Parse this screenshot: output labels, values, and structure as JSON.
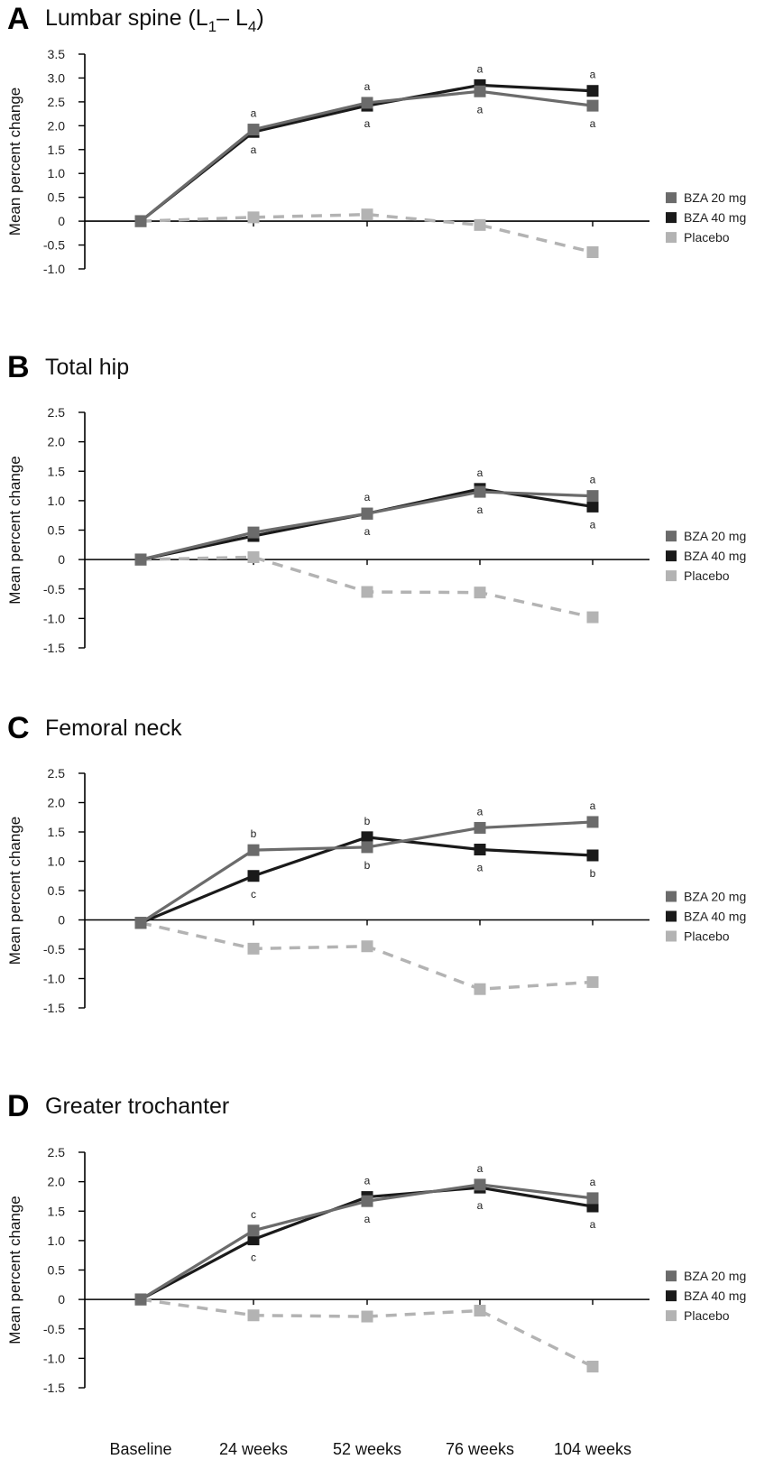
{
  "colors": {
    "bza20": "#6b6b6b",
    "bza40": "#1a1a1a",
    "placebo": "#b3b3b3",
    "axis": "#000000"
  },
  "legend": [
    "BZA 20 mg",
    "BZA 40 mg",
    "Placebo"
  ],
  "ylabel": "Mean percent change",
  "categories": [
    "Baseline",
    "24 weeks",
    "52 weeks",
    "76 weeks",
    "104 weeks"
  ],
  "chart_data": [
    {
      "type": "line",
      "panel": "A",
      "title": "Lumbar spine (L1– L4)",
      "title_main": "Lumbar spine (L",
      "title_sub1": "1",
      "title_mid": "– L",
      "title_sub2": "4",
      "title_end": ")",
      "categories": [
        "Baseline",
        "24 weeks",
        "52 weeks",
        "76 weeks",
        "104 weeks"
      ],
      "ylim": [
        -1.0,
        3.5
      ],
      "yticks": [
        -1.0,
        -0.5,
        0,
        0.5,
        1.0,
        1.5,
        2.0,
        2.5,
        3.0,
        3.5
      ],
      "ytick_labels": [
        "-1.0",
        "-0.5",
        "0",
        "0.5",
        "1.0",
        "1.5",
        "2.0",
        "2.5",
        "3.0",
        "3.5"
      ],
      "series": [
        {
          "name": "BZA 20 mg",
          "values": [
            0,
            1.92,
            2.48,
            2.72,
            2.42
          ],
          "sig_above": [
            "",
            "a",
            "a",
            "",
            ""
          ],
          "sig_below": [
            "",
            "",
            "",
            "a",
            "a"
          ]
        },
        {
          "name": "BZA 40 mg",
          "values": [
            0,
            1.87,
            2.42,
            2.85,
            2.73
          ],
          "sig_above": [
            "",
            "",
            "",
            "a",
            "a"
          ],
          "sig_below": [
            "",
            "a",
            "a",
            "",
            ""
          ]
        },
        {
          "name": "Placebo",
          "values": [
            0,
            0.08,
            0.14,
            -0.08,
            -0.65
          ]
        }
      ]
    },
    {
      "type": "line",
      "panel": "B",
      "title": "Total hip",
      "categories": [
        "Baseline",
        "24 weeks",
        "52 weeks",
        "76 weeks",
        "104 weeks"
      ],
      "ylim": [
        -1.5,
        2.5
      ],
      "yticks": [
        -1.5,
        -1.0,
        -0.5,
        0,
        0.5,
        1.0,
        1.5,
        2.0,
        2.5
      ],
      "ytick_labels": [
        "-1.5",
        "-1.0",
        "-0.5",
        "0",
        "0.5",
        "1.0",
        "1.5",
        "2.0",
        "2.5"
      ],
      "series": [
        {
          "name": "BZA 20 mg",
          "values": [
            0,
            0.46,
            0.78,
            1.15,
            1.08
          ],
          "sig_above": [
            "",
            "",
            "a",
            "",
            "a"
          ],
          "sig_below": [
            "",
            "",
            "",
            "a",
            ""
          ]
        },
        {
          "name": "BZA 40 mg",
          "values": [
            0,
            0.4,
            0.78,
            1.2,
            0.9
          ],
          "sig_above": [
            "",
            "",
            "",
            "a",
            ""
          ],
          "sig_below": [
            "",
            "",
            "a",
            "",
            "a"
          ]
        },
        {
          "name": "Placebo",
          "values": [
            0,
            0.04,
            -0.55,
            -0.56,
            -0.98
          ]
        }
      ]
    },
    {
      "type": "line",
      "panel": "C",
      "title": "Femoral neck",
      "categories": [
        "Baseline",
        "24 weeks",
        "52 weeks",
        "76 weeks",
        "104 weeks"
      ],
      "ylim": [
        -1.5,
        2.5
      ],
      "yticks": [
        -1.5,
        -1.0,
        -0.5,
        0,
        0.5,
        1.0,
        1.5,
        2.0,
        2.5
      ],
      "ytick_labels": [
        "-1.5",
        "-1.0",
        "-0.5",
        "0",
        "0.5",
        "1.0",
        "1.5",
        "2.0",
        "2.5"
      ],
      "series": [
        {
          "name": "BZA 20 mg",
          "values": [
            -0.05,
            1.19,
            1.24,
            1.57,
            1.67
          ],
          "sig_above": [
            "",
            "b",
            "",
            "a",
            "a"
          ],
          "sig_below": [
            "",
            "",
            "b",
            "",
            ""
          ]
        },
        {
          "name": "BZA 40 mg",
          "values": [
            -0.05,
            0.75,
            1.41,
            1.2,
            1.1
          ],
          "sig_above": [
            "",
            "",
            "b",
            "",
            ""
          ],
          "sig_below": [
            "",
            "c",
            "",
            "a",
            "b"
          ]
        },
        {
          "name": "Placebo",
          "values": [
            -0.05,
            -0.49,
            -0.45,
            -1.18,
            -1.06
          ]
        }
      ]
    },
    {
      "type": "line",
      "panel": "D",
      "title": "Greater trochanter",
      "xlabels_visible": true,
      "categories": [
        "Baseline",
        "24 weeks",
        "52 weeks",
        "76 weeks",
        "104 weeks"
      ],
      "ylim": [
        -1.5,
        2.5
      ],
      "yticks": [
        -1.5,
        -1.0,
        -0.5,
        0,
        0.5,
        1.0,
        1.5,
        2.0,
        2.5
      ],
      "ytick_labels": [
        "-1.5",
        "-1.0",
        "-0.5",
        "0",
        "0.5",
        "1.0",
        "1.5",
        "2.0",
        "2.5"
      ],
      "series": [
        {
          "name": "BZA 20 mg",
          "values": [
            0,
            1.17,
            1.67,
            1.95,
            1.72
          ],
          "sig_above": [
            "",
            "c",
            "",
            "a",
            "a"
          ],
          "sig_below": [
            "",
            "",
            "a",
            "",
            ""
          ]
        },
        {
          "name": "BZA 40 mg",
          "values": [
            0,
            1.02,
            1.74,
            1.9,
            1.58
          ],
          "sig_above": [
            "",
            "",
            "a",
            "",
            ""
          ],
          "sig_below": [
            "",
            "c",
            "",
            "a",
            "a"
          ]
        },
        {
          "name": "Placebo",
          "values": [
            0,
            -0.27,
            -0.29,
            -0.19,
            -1.14
          ]
        }
      ]
    }
  ]
}
